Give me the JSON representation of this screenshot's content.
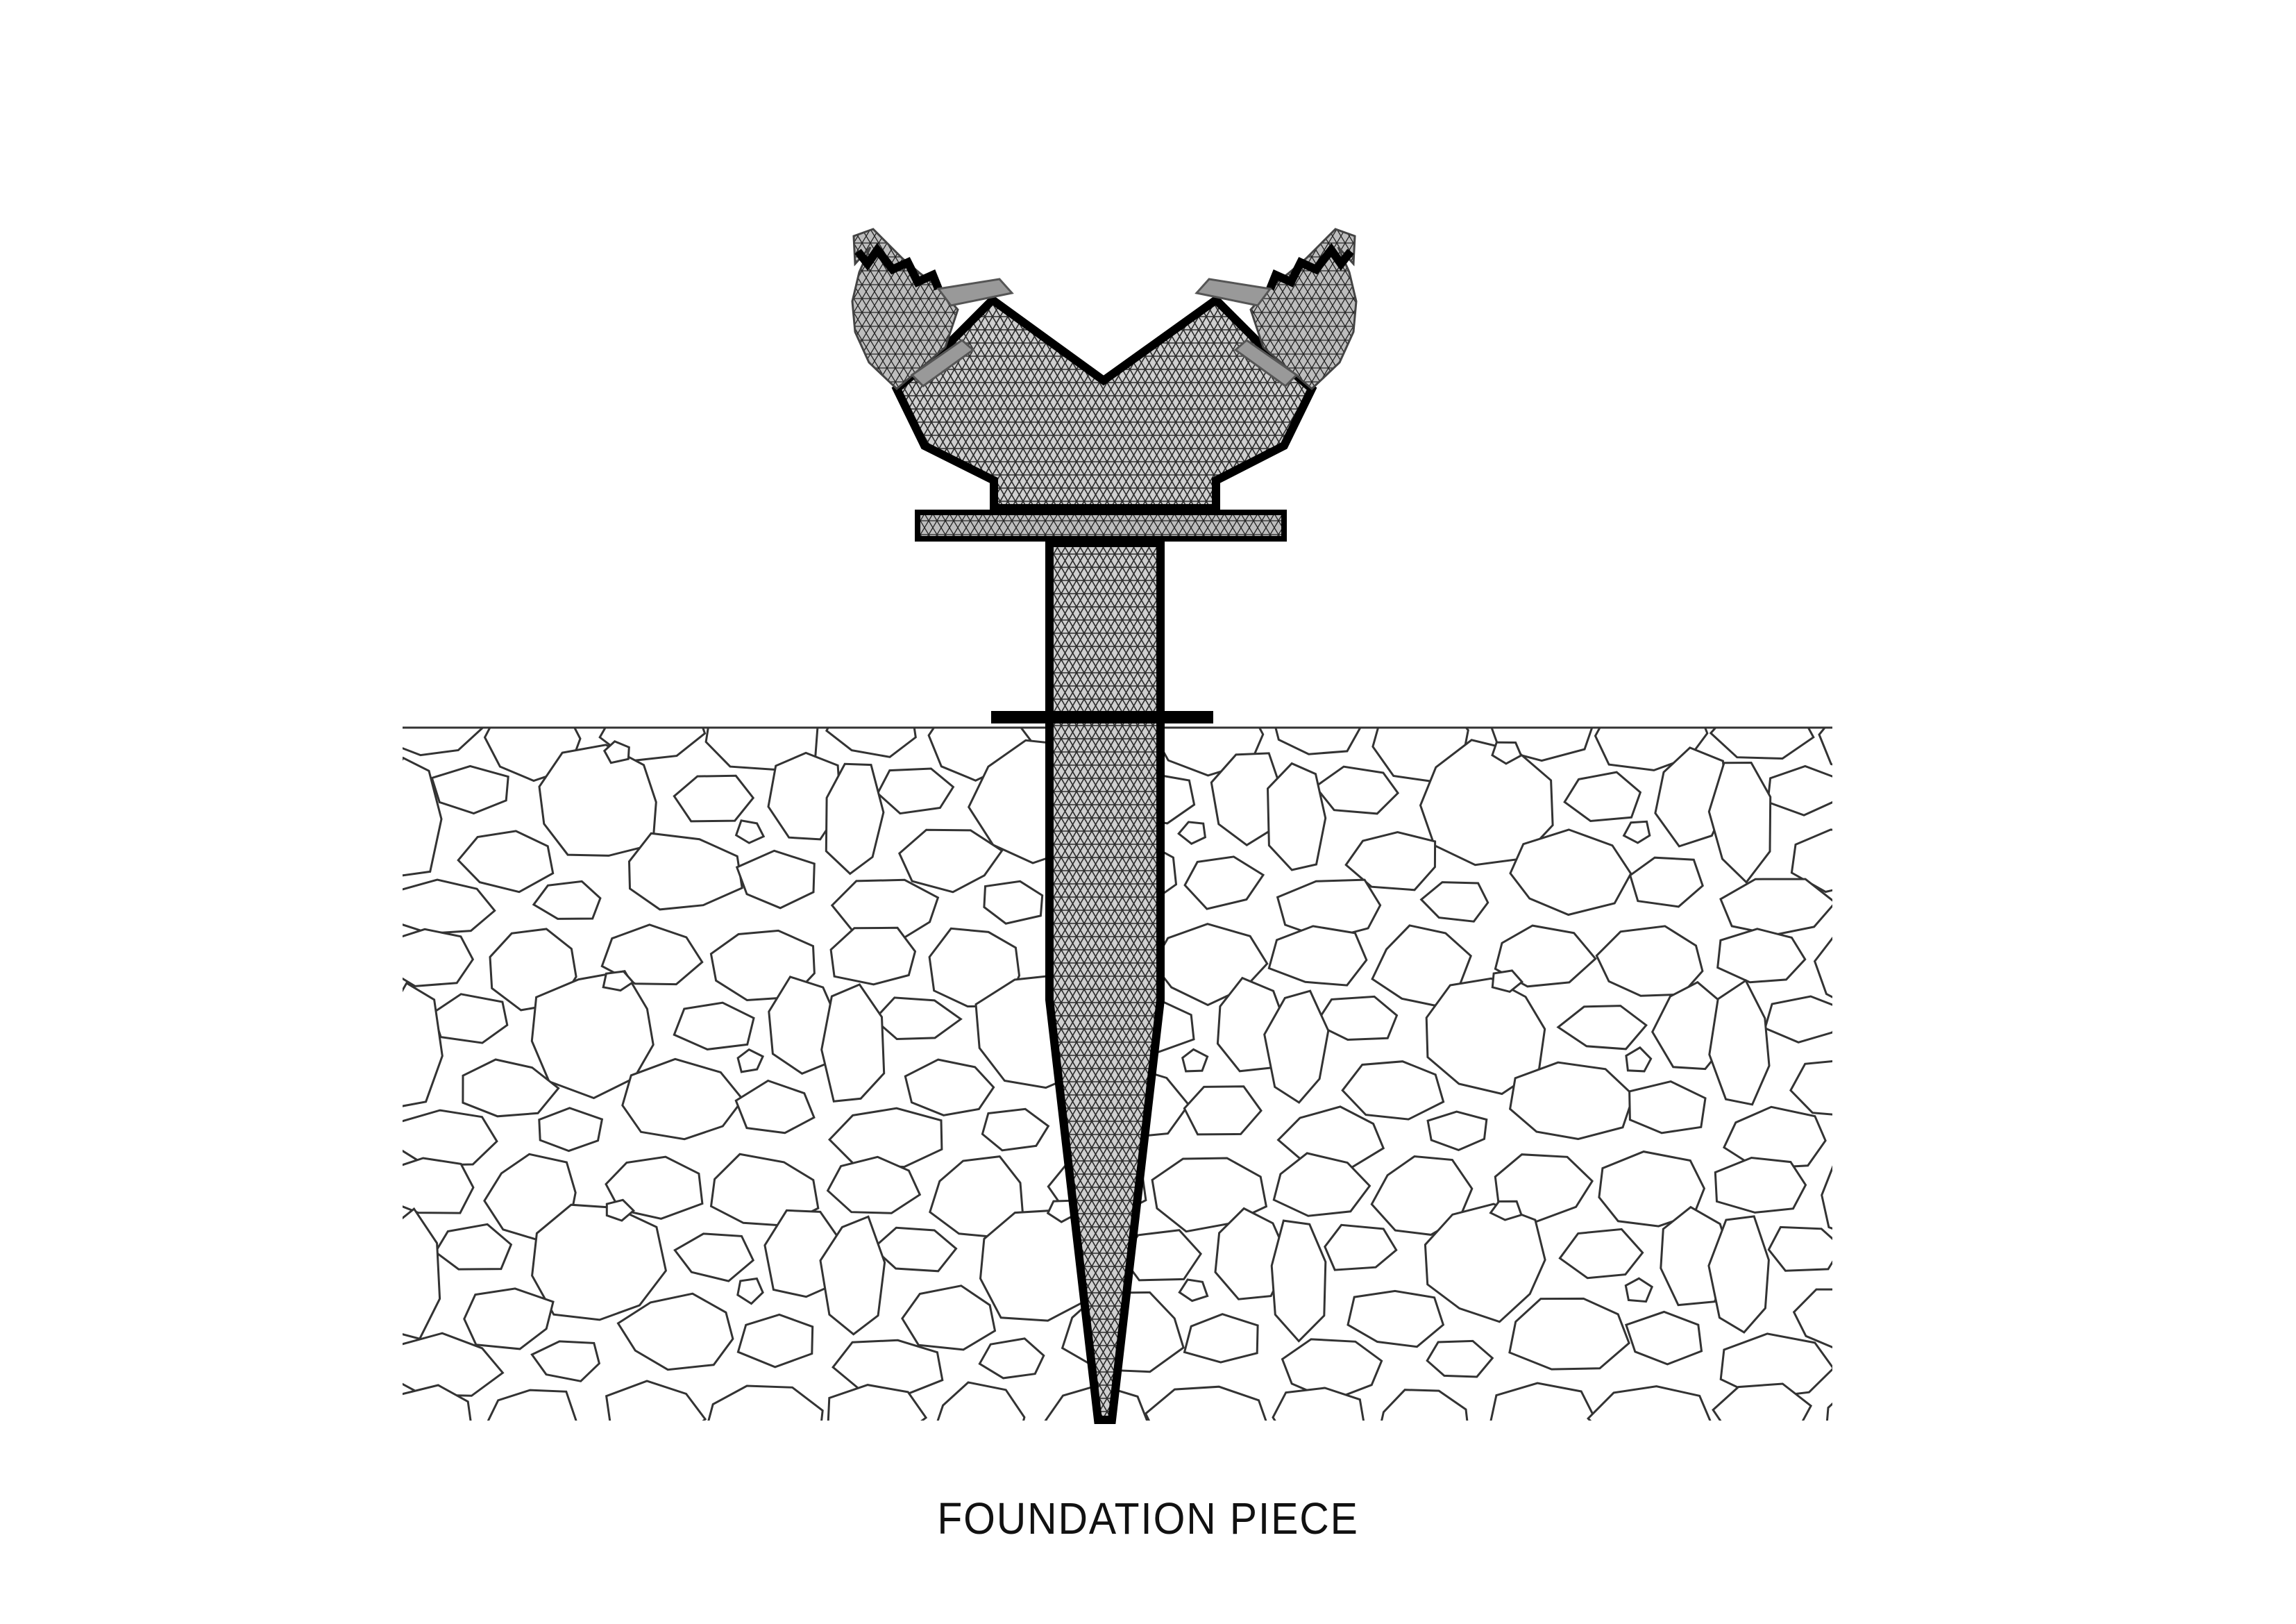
{
  "caption": "FOUNDATION PIECE",
  "colors": {
    "outline": "#000000",
    "stone_line": "#333333",
    "hatch": "#2a2a2a",
    "fill_base": "#c9c9c9",
    "background": "#ffffff"
  },
  "components": {
    "ground": "stone-ground-section",
    "stake": "tapered-stake",
    "ground_plate": "ground-level-plate",
    "collar_plate": "collar-plate",
    "head": "v-shaped-head",
    "arm_ends": "toothed-arm-ends"
  }
}
